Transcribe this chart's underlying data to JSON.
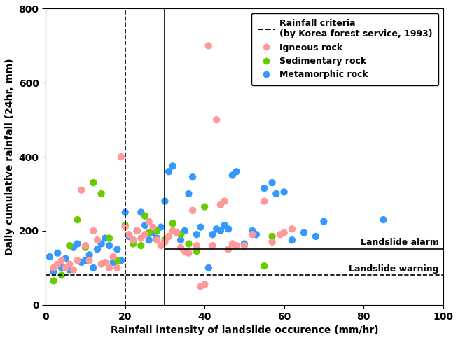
{
  "igneous_x": [
    2,
    3,
    4,
    5,
    6,
    7,
    8,
    9,
    10,
    11,
    12,
    13,
    14,
    15,
    16,
    17,
    18,
    19,
    20,
    21,
    22,
    23,
    24,
    25,
    26,
    27,
    28,
    29,
    30,
    31,
    32,
    33,
    34,
    35,
    36,
    37,
    38,
    39,
    40,
    41,
    42,
    43,
    44,
    45,
    46,
    47,
    48,
    50,
    52,
    55,
    57,
    59,
    60,
    62
  ],
  "igneous_y": [
    100,
    110,
    120,
    100,
    110,
    95,
    120,
    310,
    160,
    120,
    200,
    175,
    110,
    115,
    100,
    130,
    100,
    400,
    210,
    190,
    175,
    200,
    180,
    190,
    225,
    210,
    175,
    160,
    170,
    185,
    200,
    195,
    155,
    145,
    140,
    255,
    160,
    50,
    55,
    700,
    160,
    500,
    270,
    280,
    150,
    165,
    160,
    160,
    190,
    280,
    170,
    190,
    195,
    205
  ],
  "sedimentary_x": [
    2,
    4,
    6,
    8,
    10,
    12,
    14,
    16,
    18,
    20,
    22,
    24,
    25,
    26,
    28,
    30,
    32,
    34,
    36,
    38,
    40,
    55,
    57
  ],
  "sedimentary_y": [
    65,
    80,
    160,
    230,
    155,
    330,
    300,
    180,
    120,
    215,
    165,
    160,
    240,
    195,
    200,
    175,
    220,
    190,
    165,
    145,
    265,
    105,
    185
  ],
  "metamorphic_x": [
    1,
    2,
    3,
    4,
    5,
    6,
    7,
    8,
    9,
    10,
    11,
    12,
    13,
    14,
    15,
    16,
    17,
    18,
    19,
    20,
    21,
    22,
    23,
    24,
    25,
    26,
    27,
    28,
    29,
    30,
    31,
    32,
    33,
    34,
    35,
    36,
    37,
    38,
    39,
    40,
    41,
    42,
    43,
    44,
    45,
    46,
    47,
    48,
    50,
    52,
    53,
    55,
    57,
    58,
    60,
    62,
    65,
    68,
    70,
    85
  ],
  "metamorphic_y": [
    130,
    90,
    140,
    100,
    125,
    95,
    155,
    165,
    115,
    120,
    135,
    100,
    150,
    165,
    180,
    160,
    115,
    150,
    120,
    250,
    185,
    175,
    200,
    250,
    215,
    175,
    195,
    180,
    210,
    280,
    360,
    375,
    195,
    175,
    200,
    300,
    345,
    190,
    210,
    55,
    100,
    190,
    205,
    200,
    215,
    205,
    350,
    360,
    165,
    200,
    190,
    315,
    330,
    300,
    305,
    175,
    195,
    185,
    225,
    230
  ],
  "igneous_color": "#FF9999",
  "sedimentary_color": "#66CC00",
  "metamorphic_color": "#3399FF",
  "alarm_y": 150,
  "warning_y": 80,
  "vline1_x": 20,
  "vline2_x": 30,
  "xlim": [
    0,
    100
  ],
  "ylim": [
    0,
    800
  ],
  "xlabel": "Rainfall intensity of landslide occurence (mm/hr)",
  "ylabel": "Daily cumulative rainfall (24hr, mm)",
  "legend_rainfall_label": "Rainfall criteria\n(by Korea forest service, 1993)",
  "legend_igneous": "Igneous rock",
  "legend_sedimentary": "Sedimentary rock",
  "legend_metamorphic": "Metamorphic rock",
  "alarm_label": "Landslide alarm",
  "warning_label": "Landslide warning",
  "xticks": [
    0,
    20,
    40,
    60,
    80,
    100
  ],
  "yticks": [
    0,
    200,
    400,
    600,
    800
  ]
}
